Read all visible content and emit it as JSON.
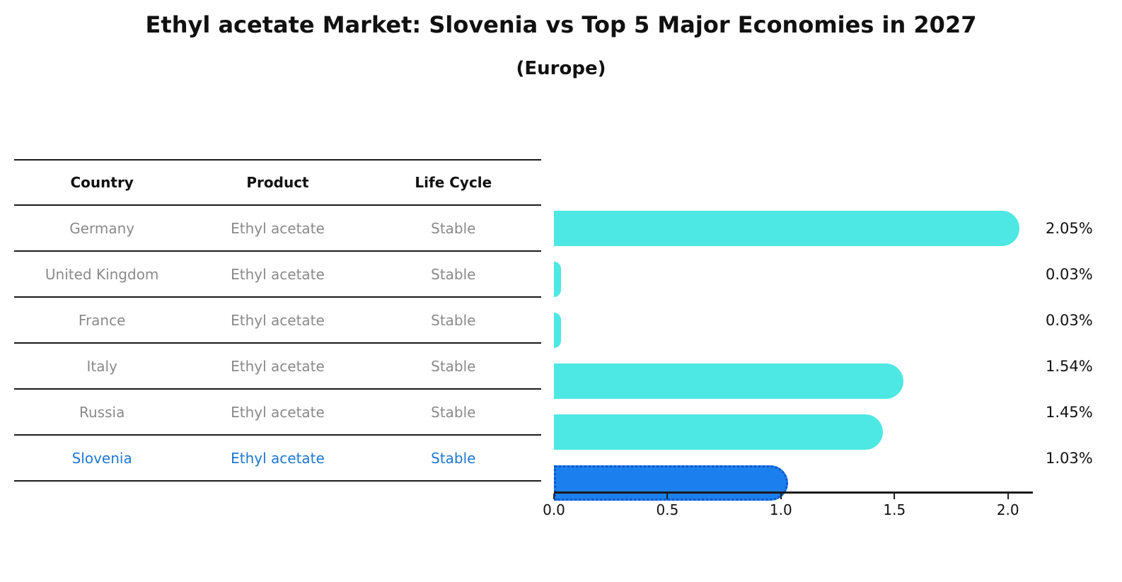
{
  "title": "Ethyl acetate Market: Slovenia vs Top 5 Major Economies in 2027",
  "subtitle": "(Europe)",
  "table": {
    "headers": [
      "Country",
      "Product",
      "Life Cycle"
    ],
    "rows": [
      {
        "country": "Germany",
        "product": "Ethyl acetate",
        "life_cycle": "Stable",
        "highlight": false
      },
      {
        "country": "United Kingdom",
        "product": "Ethyl acetate",
        "life_cycle": "Stable",
        "highlight": false
      },
      {
        "country": "France",
        "product": "Ethyl acetate",
        "life_cycle": "Stable",
        "highlight": false
      },
      {
        "country": "Italy",
        "product": "Ethyl acetate",
        "life_cycle": "Stable",
        "highlight": false
      },
      {
        "country": "Russia",
        "product": "Ethyl acetate",
        "life_cycle": "Stable",
        "highlight": false
      },
      {
        "country": "Slovenia",
        "product": "Ethyl acetate",
        "life_cycle": "Stable",
        "highlight": true
      }
    ]
  },
  "chart_data": {
    "type": "bar",
    "orientation": "horizontal",
    "title": "Ethyl acetate Market: Slovenia vs Top 5 Major Economies in 2027",
    "subtitle": "(Europe)",
    "categories": [
      "Germany",
      "United Kingdom",
      "France",
      "Italy",
      "Russia",
      "Slovenia"
    ],
    "values": [
      2.05,
      0.03,
      0.03,
      1.54,
      1.45,
      1.03
    ],
    "labels": [
      "2.05%",
      "0.03%",
      "0.03%",
      "1.54%",
      "1.45%",
      "1.03%"
    ],
    "highlighted_category": "Slovenia",
    "xlabel": "",
    "ylabel": "",
    "xlim": [
      0,
      2.11
    ],
    "grid": false,
    "legend": false,
    "xticks": [
      {
        "label": "0.0",
        "value": 0.0
      },
      {
        "label": "0.5",
        "value": 0.5
      },
      {
        "label": "1.0",
        "value": 1.0
      },
      {
        "label": "1.5",
        "value": 1.5
      },
      {
        "label": "2.0",
        "value": 2.0
      }
    ],
    "colors": {
      "bar": "#4de8e4",
      "highlight_bar": "#1b80ee",
      "highlight_bar_border": "#0f56c8",
      "table_text": "#8a8a8a",
      "highlight_text": "#1e78d2",
      "axis": "#1a1a1a"
    }
  }
}
